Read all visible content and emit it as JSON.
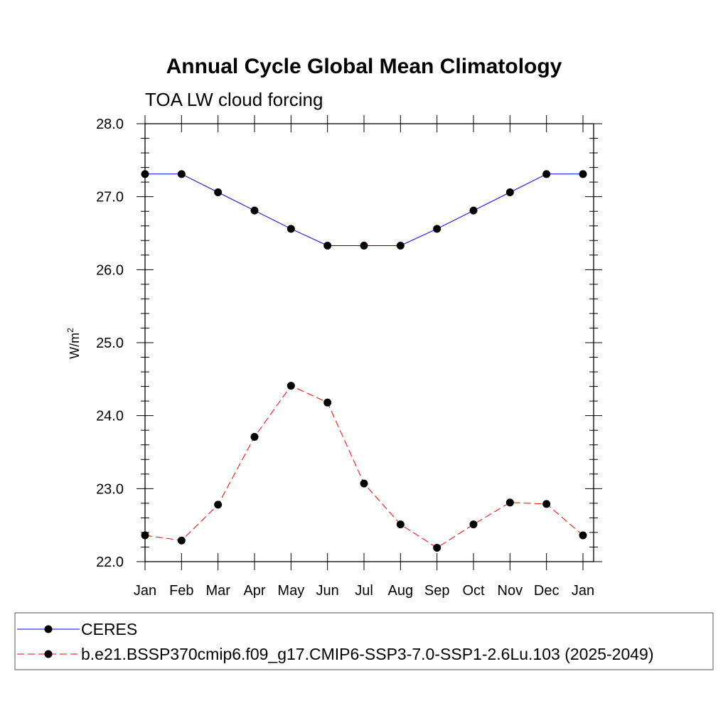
{
  "chart_data": {
    "type": "line",
    "title": "Annual Cycle Global Mean Climatology",
    "subtitle": "TOA LW cloud forcing",
    "xlabel": "",
    "ylabel_base": "W/m",
    "ylabel_sup": "2",
    "categories": [
      "Jan",
      "Feb",
      "Mar",
      "Apr",
      "May",
      "Jun",
      "Jul",
      "Aug",
      "Sep",
      "Oct",
      "Nov",
      "Dec",
      "Jan"
    ],
    "ylim": [
      22.0,
      28.0
    ],
    "yticks": [
      "22.0",
      "23.0",
      "24.0",
      "25.0",
      "26.0",
      "27.0",
      "28.0"
    ],
    "grid": false,
    "legend_position": "bottom",
    "series": [
      {
        "name": "CERES",
        "color": "#0000ff",
        "style": "solid",
        "marker": "filled-circle",
        "values": [
          27.31,
          27.31,
          27.06,
          26.81,
          26.56,
          26.33,
          26.33,
          26.33,
          26.56,
          26.81,
          27.06,
          27.31,
          27.31
        ]
      },
      {
        "name": "b.e21.BSSP370cmip6.f09_g17.CMIP6-SSP3-7.0-SSP1-2.6Lu.103 (2025-2049)",
        "color": "#ff0000",
        "style": "dashed",
        "marker": "filled-circle",
        "values": [
          22.36,
          22.29,
          22.78,
          23.71,
          24.41,
          24.18,
          23.07,
          22.51,
          22.19,
          22.51,
          22.81,
          22.79,
          22.36
        ]
      }
    ]
  }
}
